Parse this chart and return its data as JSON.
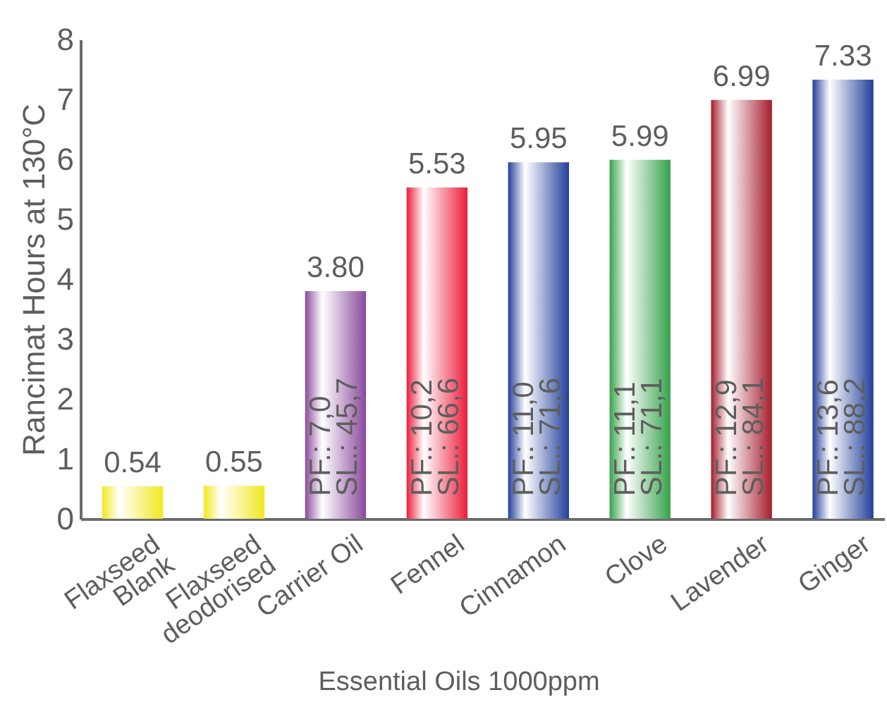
{
  "chart_data": {
    "type": "bar",
    "xlabel": "Essential Oils 1000ppm",
    "ylabel": "Rancimat Hours at 130°C",
    "categories": [
      "Flaxseed\nBlank",
      "Flaxseed\ndeodorised",
      "Carrier Oil",
      "Fennel",
      "Cinnamon",
      "Clove",
      "Lavender",
      "Ginger"
    ],
    "values": [
      0.54,
      0.55,
      3.8,
      5.53,
      5.95,
      5.99,
      6.99,
      7.33
    ],
    "colors": [
      "#f2e81f",
      "#f2e81f",
      "#8a4a9c",
      "#ec1c3a",
      "#22409a",
      "#36a24a",
      "#a51d2e",
      "#22409a"
    ],
    "value_labels": [
      "0.54",
      "0.55",
      "3.80",
      "5.53",
      "5.95",
      "5.99",
      "6.99",
      "7.33"
    ],
    "annotations": [
      {
        "text": "PF.: 7,0\nSL.: 45,7",
        "x": "Carrier Oil",
        "y": 0
      },
      {
        "text": "PF.: 10,2\nSL.: 66,6",
        "x": "Fennel",
        "y": 0
      },
      {
        "text": "PF.: 11,0\nSL.: 71,6",
        "x": "Cinnamon",
        "y": 0
      },
      {
        "text": "PF.: 11,1\nSL.: 71,1",
        "x": "Clove",
        "y": 0
      },
      {
        "text": "PF.: 12,9\nSL.: 84,1",
        "x": "Lavender",
        "y": 0
      },
      {
        "text": "PF.: 13,6\nSL.: 88,2",
        "x": "Ginger",
        "y": 0
      }
    ],
    "ylim": [
      0,
      8
    ],
    "yticks": [
      0,
      1,
      2,
      3,
      4,
      5,
      6,
      7,
      8
    ]
  }
}
